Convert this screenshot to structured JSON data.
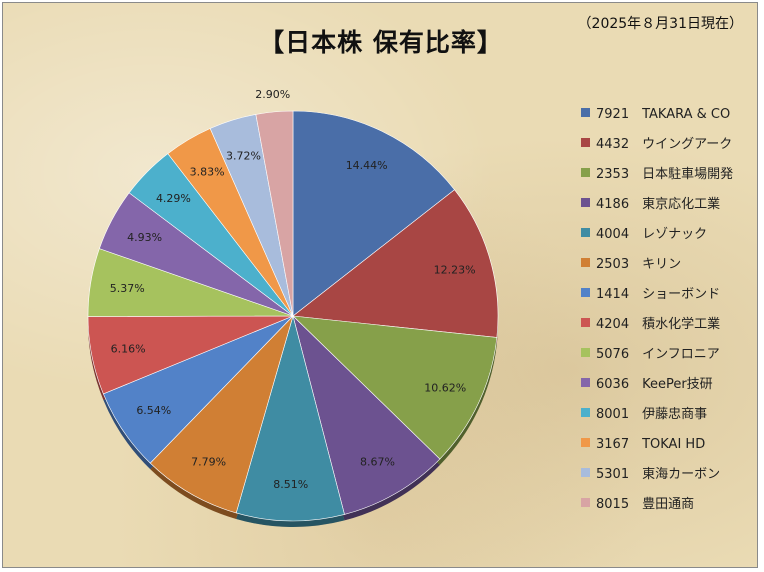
{
  "chart_data": {
    "type": "pie",
    "title": "【日本株 保有比率】",
    "subtitle": "（2025年８月31日現在）",
    "legend_position": "right",
    "slices": [
      {
        "label": "7921　TAKARA & CO",
        "value": 14.44,
        "value_label": "14.44%",
        "color": "#4a6ea8"
      },
      {
        "label": "4432　ウイングアーク",
        "value": 12.23,
        "value_label": "12.23%",
        "color": "#a84644"
      },
      {
        "label": "2353　日本駐車場開発",
        "value": 10.62,
        "value_label": "10.62%",
        "color": "#86a04a"
      },
      {
        "label": "4186　東京応化工業",
        "value": 8.67,
        "value_label": "8.67%",
        "color": "#6c5290"
      },
      {
        "label": "4004　レゾナック",
        "value": 8.51,
        "value_label": "8.51%",
        "color": "#3f8ca3"
      },
      {
        "label": "2503　キリン",
        "value": 7.79,
        "value_label": "7.79%",
        "color": "#d07f34"
      },
      {
        "label": "1414　ショーボンド",
        "value": 6.54,
        "value_label": "6.54%",
        "color": "#5282c8"
      },
      {
        "label": "4204　積水化学工業",
        "value": 6.16,
        "value_label": "6.16%",
        "color": "#cc5552"
      },
      {
        "label": "5076　インフロニア",
        "value": 5.37,
        "value_label": "5.37%",
        "color": "#a6c25e"
      },
      {
        "label": "6036　KeePer技研",
        "value": 4.93,
        "value_label": "4.93%",
        "color": "#8466aa"
      },
      {
        "label": "8001　伊藤忠商事",
        "value": 4.29,
        "value_label": "4.29%",
        "color": "#4cb0cc"
      },
      {
        "label": "3167　TOKAI HD",
        "value": 3.83,
        "value_label": "3.83%",
        "color": "#f09848"
      },
      {
        "label": "5301　東海カーボン",
        "value": 3.72,
        "value_label": "3.72%",
        "color": "#a8bcdc"
      },
      {
        "label": "8015　豊田通商",
        "value": 2.9,
        "value_label": "2.90%",
        "color": "#d8a4a4"
      }
    ]
  }
}
